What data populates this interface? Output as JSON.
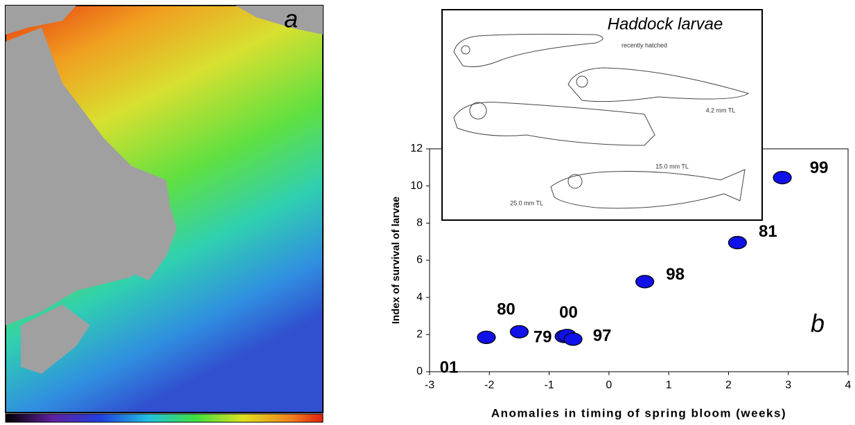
{
  "panel_a": {
    "label": "a"
  },
  "inset": {
    "title": "Haddock larvae",
    "captions": [
      "recently hatched",
      "4.2 mm TL",
      "15.0 mm TL",
      "25.0 mm TL"
    ]
  },
  "chart_data": {
    "type": "scatter",
    "panel_label": "b",
    "x_label": "Anomalies in timing of spring bloom (weeks)",
    "y_label": "Index of survival of larvae",
    "point_labels": [
      "01",
      "80",
      "79",
      "00",
      "97",
      "98",
      "81",
      "99"
    ],
    "x": [
      -2.05,
      -1.5,
      -0.75,
      -0.7,
      -0.6,
      0.6,
      2.15,
      2.9
    ],
    "values": [
      1.85,
      2.15,
      1.9,
      1.95,
      1.75,
      4.85,
      6.95,
      10.45
    ],
    "color": "#1010e8",
    "xlim": [
      -3,
      4
    ],
    "xticks": [
      -3,
      -2,
      -1,
      0,
      1,
      2,
      3,
      4
    ],
    "ylim": [
      0,
      12
    ],
    "yticks": [
      0,
      2,
      4,
      6,
      8,
      10,
      12
    ]
  }
}
